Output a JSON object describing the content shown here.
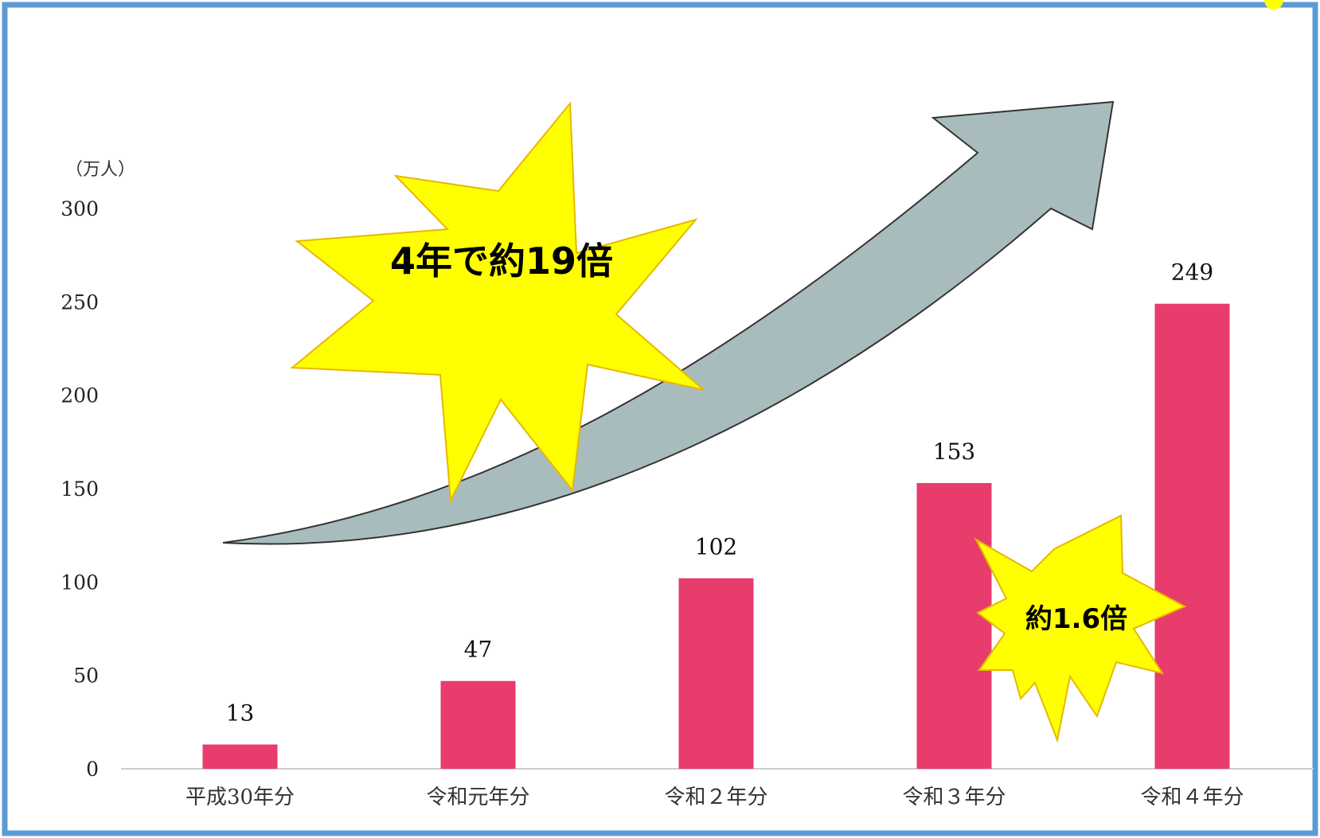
{
  "colors": {
    "bar": "#e83c6c",
    "frame": "#5b9bd5",
    "burst_fill": "#ffff00",
    "burst_stroke": "#e6b800",
    "arrow_fill": "#a9bcbd",
    "axis": "#cccccc"
  },
  "chart_data": {
    "type": "bar",
    "unit": "（万人）",
    "categories": [
      "平成30年分",
      "令和元年分",
      "令和２年分",
      "令和３年分",
      "令和４年分"
    ],
    "values": [
      13,
      47,
      102,
      153,
      249
    ],
    "ylim": [
      0,
      300
    ],
    "yticks": [
      0,
      50,
      100,
      150,
      200,
      250,
      300
    ],
    "legend": "none",
    "grid": false,
    "annotations": {
      "growth_total": "4年で約19倍",
      "growth_last": "約1.6倍"
    }
  }
}
